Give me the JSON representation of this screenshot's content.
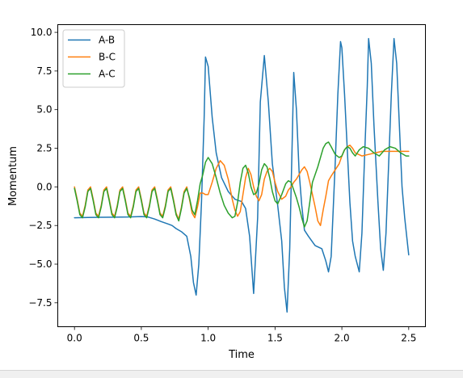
{
  "chart_data": {
    "type": "line",
    "xlabel": "Time",
    "ylabel": "Momentum",
    "xlim": [
      -0.125,
      2.625
    ],
    "ylim": [
      -9.05,
      10.5
    ],
    "xticks": [
      0.0,
      0.5,
      1.0,
      1.5,
      2.0,
      2.5
    ],
    "xtick_labels": [
      "0.0",
      "0.5",
      "1.0",
      "1.5",
      "2.0",
      "2.5"
    ],
    "yticks": [
      -7.5,
      -5.0,
      -2.5,
      0.0,
      2.5,
      5.0,
      7.5,
      10.0
    ],
    "ytick_labels": [
      "−7.5",
      "−5.0",
      "−2.5",
      "0.0",
      "2.5",
      "5.0",
      "7.5",
      "10.0"
    ],
    "grid": false,
    "legend_position": "upper-left",
    "series": [
      {
        "name": "A-B",
        "color": "#1f77b4",
        "x": [
          0.0,
          0.1,
          0.2,
          0.3,
          0.4,
          0.5,
          0.55,
          0.6,
          0.65,
          0.7,
          0.73,
          0.76,
          0.8,
          0.84,
          0.87,
          0.89,
          0.91,
          0.93,
          0.95,
          0.97,
          0.98,
          1.0,
          1.03,
          1.06,
          1.1,
          1.15,
          1.2,
          1.25,
          1.28,
          1.31,
          1.34,
          1.37,
          1.39,
          1.42,
          1.45,
          1.48,
          1.52,
          1.55,
          1.57,
          1.59,
          1.61,
          1.63,
          1.64,
          1.66,
          1.68,
          1.7,
          1.72,
          1.75,
          1.8,
          1.85,
          1.88,
          1.9,
          1.92,
          1.95,
          1.97,
          1.99,
          2.0,
          2.02,
          2.04,
          2.06,
          2.08,
          2.1,
          2.13,
          2.15,
          2.17,
          2.19,
          2.2,
          2.22,
          2.24,
          2.27,
          2.29,
          2.31,
          2.33,
          2.35,
          2.37,
          2.39,
          2.41,
          2.43,
          2.45,
          2.47,
          2.5
        ],
        "y": [
          -2.0,
          -1.98,
          -1.97,
          -1.96,
          -1.95,
          -1.92,
          -1.95,
          -2.08,
          -2.25,
          -2.4,
          -2.5,
          -2.7,
          -2.9,
          -3.2,
          -4.5,
          -6.2,
          -7.0,
          -5.0,
          -1.0,
          4.5,
          8.4,
          7.8,
          4.5,
          2.2,
          0.6,
          -0.3,
          -0.8,
          -0.95,
          -1.4,
          -3.2,
          -6.9,
          -2.0,
          5.5,
          8.5,
          5.5,
          1.5,
          -1.2,
          -3.5,
          -6.5,
          -8.1,
          -4.0,
          3.5,
          7.4,
          5.0,
          1.0,
          -1.2,
          -2.8,
          -3.2,
          -3.8,
          -4.0,
          -4.8,
          -5.5,
          -4.5,
          1.5,
          6.0,
          9.4,
          9.0,
          6.0,
          2.5,
          -1.0,
          -3.5,
          -4.5,
          -5.5,
          -3.0,
          2.0,
          6.5,
          9.6,
          8.0,
          4.0,
          -1.0,
          -4.0,
          -5.4,
          -3.0,
          1.5,
          6.0,
          9.6,
          8.0,
          4.0,
          0.0,
          -2.0,
          -4.4
        ]
      },
      {
        "name": "B-C",
        "color": "#ff7f0e",
        "x": [
          0.0,
          0.02,
          0.04,
          0.06,
          0.08,
          0.1,
          0.12,
          0.14,
          0.16,
          0.18,
          0.2,
          0.22,
          0.24,
          0.26,
          0.28,
          0.3,
          0.32,
          0.34,
          0.36,
          0.38,
          0.4,
          0.42,
          0.44,
          0.46,
          0.48,
          0.5,
          0.52,
          0.54,
          0.56,
          0.58,
          0.6,
          0.62,
          0.64,
          0.66,
          0.68,
          0.7,
          0.72,
          0.74,
          0.76,
          0.78,
          0.8,
          0.82,
          0.84,
          0.86,
          0.88,
          0.9,
          0.92,
          0.94,
          0.96,
          0.98,
          1.0,
          1.03,
          1.06,
          1.09,
          1.12,
          1.15,
          1.18,
          1.2,
          1.22,
          1.24,
          1.26,
          1.28,
          1.3,
          1.32,
          1.34,
          1.36,
          1.38,
          1.4,
          1.42,
          1.44,
          1.46,
          1.48,
          1.5,
          1.52,
          1.55,
          1.58,
          1.6,
          1.62,
          1.64,
          1.66,
          1.68,
          1.7,
          1.72,
          1.74,
          1.76,
          1.78,
          1.8,
          1.82,
          1.84,
          1.86,
          1.88,
          1.9,
          1.92,
          1.95,
          1.98,
          2.0,
          2.02,
          2.04,
          2.06,
          2.08,
          2.1,
          2.15,
          2.2,
          2.25,
          2.3,
          2.35,
          2.4,
          2.45,
          2.5
        ],
        "y": [
          0.0,
          -0.8,
          -1.7,
          -1.9,
          -1.2,
          -0.2,
          0.0,
          -0.8,
          -1.7,
          -1.9,
          -1.2,
          -0.2,
          0.0,
          -0.8,
          -1.7,
          -1.9,
          -1.2,
          -0.2,
          0.0,
          -0.8,
          -1.7,
          -1.9,
          -1.2,
          -0.2,
          0.0,
          -0.8,
          -1.7,
          -1.9,
          -1.2,
          -0.2,
          0.0,
          -0.8,
          -1.7,
          -1.9,
          -1.2,
          -0.2,
          0.0,
          -0.8,
          -1.7,
          -2.1,
          -1.3,
          -0.3,
          0.0,
          -0.8,
          -1.7,
          -2.0,
          -1.3,
          -0.4,
          -0.4,
          -0.5,
          -0.5,
          0.3,
          1.2,
          1.7,
          1.4,
          0.5,
          -0.8,
          -1.5,
          -1.9,
          -1.6,
          -0.5,
          0.6,
          1.2,
          0.8,
          0.0,
          -0.6,
          -0.9,
          -0.5,
          0.5,
          1.0,
          1.2,
          1.0,
          0.3,
          -0.3,
          -0.8,
          -0.6,
          -0.2,
          0.0,
          0.3,
          0.5,
          0.8,
          1.1,
          1.3,
          1.0,
          0.3,
          -0.5,
          -1.3,
          -2.2,
          -2.5,
          -1.5,
          -0.6,
          0.4,
          0.7,
          1.1,
          1.5,
          2.0,
          2.4,
          2.6,
          2.7,
          2.5,
          2.2,
          2.0,
          2.1,
          2.2,
          2.3,
          2.3,
          2.3,
          2.3,
          2.3
        ]
      },
      {
        "name": "A-C",
        "color": "#2ca02c",
        "x": [
          0.0,
          0.02,
          0.04,
          0.06,
          0.08,
          0.1,
          0.12,
          0.14,
          0.16,
          0.18,
          0.2,
          0.22,
          0.24,
          0.26,
          0.28,
          0.3,
          0.32,
          0.34,
          0.36,
          0.38,
          0.4,
          0.42,
          0.44,
          0.46,
          0.48,
          0.5,
          0.52,
          0.54,
          0.56,
          0.58,
          0.6,
          0.62,
          0.64,
          0.66,
          0.68,
          0.7,
          0.72,
          0.74,
          0.76,
          0.78,
          0.8,
          0.82,
          0.84,
          0.86,
          0.88,
          0.9,
          0.92,
          0.94,
          0.96,
          0.98,
          1.0,
          1.03,
          1.06,
          1.09,
          1.12,
          1.15,
          1.18,
          1.2,
          1.22,
          1.24,
          1.26,
          1.28,
          1.3,
          1.32,
          1.34,
          1.36,
          1.38,
          1.4,
          1.42,
          1.44,
          1.46,
          1.48,
          1.5,
          1.52,
          1.55,
          1.58,
          1.6,
          1.62,
          1.64,
          1.66,
          1.68,
          1.7,
          1.72,
          1.74,
          1.76,
          1.78,
          1.8,
          1.82,
          1.84,
          1.86,
          1.88,
          1.9,
          1.92,
          1.95,
          1.98,
          2.0,
          2.02,
          2.04,
          2.06,
          2.08,
          2.1,
          2.13,
          2.16,
          2.2,
          2.24,
          2.28,
          2.32,
          2.36,
          2.4,
          2.44,
          2.48,
          2.5
        ],
        "y": [
          -0.1,
          -0.9,
          -1.8,
          -2.0,
          -1.3,
          -0.3,
          -0.1,
          -0.9,
          -1.8,
          -2.0,
          -1.3,
          -0.3,
          -0.1,
          -0.9,
          -1.8,
          -2.0,
          -1.3,
          -0.3,
          -0.1,
          -0.9,
          -1.8,
          -2.0,
          -1.3,
          -0.3,
          -0.1,
          -0.9,
          -1.8,
          -2.0,
          -1.3,
          -0.3,
          -0.1,
          -0.9,
          -1.8,
          -2.0,
          -1.3,
          -0.3,
          -0.1,
          -0.9,
          -1.8,
          -2.2,
          -1.4,
          -0.4,
          -0.1,
          -0.7,
          -1.5,
          -1.8,
          -0.9,
          0.2,
          0.8,
          1.6,
          1.9,
          1.5,
          0.6,
          -0.4,
          -1.2,
          -1.7,
          -2.0,
          -1.9,
          -1.0,
          0.3,
          1.2,
          1.4,
          0.9,
          0.0,
          -0.5,
          -0.4,
          0.2,
          1.1,
          1.5,
          1.3,
          0.6,
          -0.3,
          -0.9,
          -1.1,
          -0.5,
          0.2,
          0.4,
          0.3,
          -0.2,
          -0.7,
          -1.3,
          -2.0,
          -2.6,
          -2.2,
          -1.0,
          0.3,
          0.8,
          1.3,
          1.9,
          2.5,
          2.8,
          2.9,
          2.6,
          2.1,
          1.9,
          2.0,
          2.4,
          2.6,
          2.5,
          2.2,
          2.0,
          2.4,
          2.6,
          2.5,
          2.2,
          2.0,
          2.4,
          2.6,
          2.5,
          2.2,
          2.0,
          2.0
        ]
      }
    ]
  }
}
